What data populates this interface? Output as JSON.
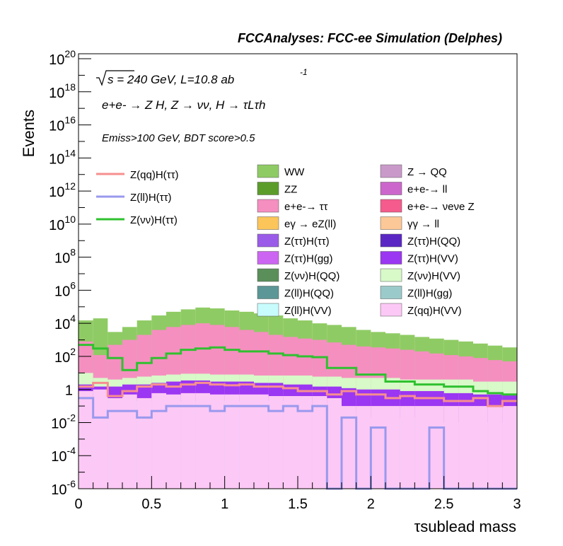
{
  "header": {
    "title": "FCCAnalyses: FCC-ee Simulation (Delphes)"
  },
  "annotations": {
    "sqrt_s": "s = 240 GeV, L=10.8 ab",
    "lumi_exp": "-1",
    "process": "e+e- → Z H, Z → νν, H → τLτh",
    "selection": "Emiss>100 GeV, BDT score>0.5"
  },
  "legend": {
    "lines": [
      {
        "label": "Z(qq)H(ττ)",
        "color": "#f78f8f"
      },
      {
        "label": "Z(ll)H(ττ)",
        "color": "#9999ee"
      },
      {
        "label": "Z(νν)H(ττ)",
        "color": "#2fc12f"
      }
    ],
    "fills": [
      {
        "label": "WW",
        "color": "#8fcb64"
      },
      {
        "label": "Z → QQ",
        "color": "#c99ac9"
      },
      {
        "label": "ZZ",
        "color": "#5c9c2b"
      },
      {
        "label": "e+e-→ ll",
        "color": "#cc66cc"
      },
      {
        "label": "e+e-→ ττ",
        "color": "#f58fc0"
      },
      {
        "label": "e+e-→ νeνe Z",
        "color": "#f55b8c"
      },
      {
        "label": "eγ → eZ(ll)",
        "color": "#fbc55a"
      },
      {
        "label": "γγ → ll",
        "color": "#fcc897"
      },
      {
        "label": "Z(ττ)H(ττ)",
        "color": "#9a5ce8"
      },
      {
        "label": "Z(ττ)H(QQ)",
        "color": "#5b27c4"
      },
      {
        "label": "Z(ττ)H(gg)",
        "color": "#cc66f2"
      },
      {
        "label": "Z(ττ)H(VV)",
        "color": "#9b36f2"
      },
      {
        "label": "Z(νν)H(QQ)",
        "color": "#5a8f5a"
      },
      {
        "label": "Z(νν)H(VV)",
        "color": "#d8f9c8"
      },
      {
        "label": "Z(ll)H(QQ)",
        "color": "#5c9696"
      },
      {
        "label": "Z(ll)H(gg)",
        "color": "#9bcaca"
      },
      {
        "label": "Z(ll)H(VV)",
        "color": "#c8fcfc"
      },
      {
        "label": "Z(qq)H(VV)",
        "color": "#fcc8f5"
      }
    ]
  },
  "chart_data": {
    "type": "area",
    "title": "FCCAnalyses: FCC-ee Simulation (Delphes)",
    "xlabel": "τsublead mass",
    "ylabel": "Events",
    "xlim": [
      0,
      3
    ],
    "ylim": [
      1e-06,
      2e+20
    ],
    "log_y": true,
    "x_ticks": [
      "0",
      "0.5",
      "1",
      "1.5",
      "2",
      "2.5",
      "3"
    ],
    "y_ticks": [
      {
        "base": "10",
        "exp": "20",
        "value": 1e+20
      },
      {
        "base": "10",
        "exp": "18",
        "value": 1e+18
      },
      {
        "base": "10",
        "exp": "16",
        "value": 1e+16
      },
      {
        "base": "10",
        "exp": "14",
        "value": 100000000000000.0
      },
      {
        "base": "10",
        "exp": "12",
        "value": 1000000000000.0
      },
      {
        "base": "10",
        "exp": "10",
        "value": 10000000000.0
      },
      {
        "base": "10",
        "exp": "8",
        "value": 100000000.0
      },
      {
        "base": "10",
        "exp": "6",
        "value": 1000000.0
      },
      {
        "base": "10",
        "exp": "4",
        "value": 10000
      },
      {
        "base": "10",
        "exp": "2",
        "value": 100
      },
      {
        "base": "1",
        "exp": "",
        "value": 1
      },
      {
        "base": "10",
        "exp": "-2",
        "value": 0.01
      },
      {
        "base": "10",
        "exp": "-4",
        "value": 0.0001
      },
      {
        "base": "10",
        "exp": "-6",
        "value": 1e-06
      }
    ],
    "bin_edges": [
      0.0,
      0.1,
      0.2,
      0.3,
      0.4,
      0.5,
      0.6,
      0.7,
      0.8,
      0.9,
      1.0,
      1.1,
      1.2,
      1.3,
      1.4,
      1.5,
      1.6,
      1.7,
      1.8,
      1.9,
      2.0,
      2.1,
      2.2,
      2.3,
      2.4,
      2.5,
      2.6,
      2.7,
      2.8,
      2.9,
      3.0
    ],
    "stack_envelopes": [
      {
        "name": "Z(qq)H(VV)",
        "color": "#fcc8f5",
        "values": [
          0.8,
          1.0,
          0.3,
          0.5,
          0.3,
          0.6,
          0.5,
          0.6,
          0.6,
          0.5,
          0.5,
          0.5,
          0.5,
          0.4,
          0.4,
          0.4,
          0.4,
          0.3,
          0.1,
          0.1,
          0.1,
          0.1,
          0.1,
          0.1,
          0.1,
          0.1,
          0.1,
          0.1,
          0.1,
          0.1
        ]
      },
      {
        "name": "Z(ll)H(VV)",
        "color": "#c8fcfc",
        "values": [
          0.3,
          0.3,
          0.2,
          0.2,
          0.2,
          0.3,
          0.2,
          0.2,
          0.2,
          0.2,
          0.2,
          0.2,
          0.2,
          0.2,
          0.2,
          0.1,
          0.1,
          0.1,
          0.05,
          0.02,
          0.02,
          0.02,
          0.02,
          0.02,
          0.01,
          0.01,
          0.01,
          0.01,
          0.01,
          0.01
        ]
      },
      {
        "name": "Z(ττ)H(VV)",
        "color": "#9b36f2",
        "values": [
          2,
          1.5,
          1.5,
          2,
          2,
          2.5,
          3,
          3.5,
          3.5,
          3,
          3,
          3,
          2.5,
          2.5,
          2,
          2,
          1.5,
          1.5,
          1.2,
          1,
          1,
          1,
          0.8,
          0.8,
          0.8,
          0.6,
          0.6,
          0.5,
          0.5,
          0.5
        ]
      },
      {
        "name": "Z(νν)H(VV)",
        "color": "#d8f9c8",
        "values": [
          10,
          5,
          4,
          5,
          6,
          7,
          8,
          9,
          9,
          8,
          8,
          8,
          7,
          7,
          7,
          7,
          6,
          6,
          5,
          5,
          5,
          5,
          4,
          4,
          4,
          4,
          4,
          3,
          3,
          3
        ]
      },
      {
        "name": "e+e-→ ττ",
        "color": "#f58fc0",
        "values": [
          800,
          120,
          500,
          1000,
          2000,
          4000,
          6000,
          8000,
          10000,
          8000,
          6000,
          4000,
          3000,
          2000,
          1500,
          1200,
          1000,
          700,
          500,
          400,
          350,
          300,
          250,
          200,
          150,
          120,
          100,
          80,
          60,
          50
        ]
      },
      {
        "name": "WW",
        "color": "#8fcb64",
        "values": [
          15000,
          20000,
          3000,
          6000,
          15000,
          30000,
          50000,
          70000,
          90000,
          80000,
          60000,
          50000,
          40000,
          30000,
          20000,
          15000,
          10000,
          8000,
          6000,
          4000,
          3000,
          2500,
          2000,
          1500,
          1200,
          1000,
          800,
          600,
          450,
          350
        ]
      }
    ],
    "series": [
      {
        "name": "Z(qq)H(ττ)",
        "color": "#f78f8f",
        "values": [
          1.5,
          2.5,
          0.4,
          0.8,
          1.5,
          2,
          1.5,
          2,
          2.5,
          2,
          1.8,
          2,
          1.5,
          1.5,
          1.2,
          0.8,
          0.8,
          0.5,
          0.8,
          0.5,
          0.5,
          0.3,
          0.4,
          0.3,
          0.3,
          0.2,
          0.2,
          0.3,
          0.1,
          0.2
        ]
      },
      {
        "name": "Z(ll)H(ττ)",
        "color": "#9999ee",
        "values": [
          0.3,
          0.02,
          0.05,
          0.05,
          0.02,
          0.05,
          0.1,
          0.1,
          0.1,
          0.05,
          0.1,
          0.1,
          0.1,
          0.05,
          0.1,
          0.05,
          0.1,
          1e-06,
          0.02,
          1e-06,
          0.005,
          1e-06,
          1e-06,
          1e-06,
          0.005,
          1e-06,
          1e-06,
          1e-06,
          1e-06,
          1e-06
        ]
      },
      {
        "name": "Z(νν)H(ττ)",
        "color": "#2fc12f",
        "values": [
          500,
          300,
          80,
          15,
          40,
          80,
          150,
          250,
          300,
          350,
          250,
          200,
          200,
          150,
          120,
          100,
          90,
          20,
          20,
          8,
          8,
          3,
          3,
          2,
          2,
          1.5,
          1.5,
          0.8,
          0.6,
          0.5
        ]
      }
    ]
  }
}
